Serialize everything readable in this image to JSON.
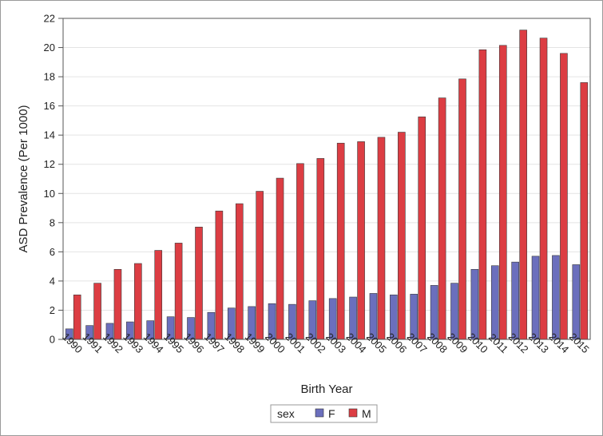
{
  "chart_data": {
    "type": "bar",
    "xlabel": "Birth Year",
    "ylabel": "ASD Prevalence (Per 1000)",
    "ylim": [
      0,
      22
    ],
    "yticks": [
      0,
      2,
      4,
      6,
      8,
      10,
      12,
      14,
      16,
      18,
      20,
      22
    ],
    "grid": true,
    "legend": {
      "title": "sex",
      "placement": "bottom"
    },
    "categories": [
      "1990",
      "1991",
      "1992",
      "1993",
      "1994",
      "1995",
      "1996",
      "1997",
      "1998",
      "1999",
      "2000",
      "2001",
      "2002",
      "2003",
      "2004",
      "2005",
      "2006",
      "2007",
      "2008",
      "2009",
      "2010",
      "2011",
      "2012",
      "2013",
      "2014",
      "2015"
    ],
    "series": [
      {
        "name": "F",
        "color": "#6b6fbd",
        "values": [
          0.72,
          0.95,
          1.1,
          1.2,
          1.28,
          1.55,
          1.5,
          1.85,
          2.15,
          2.25,
          2.45,
          2.4,
          2.65,
          2.8,
          2.9,
          3.15,
          3.05,
          3.1,
          3.7,
          3.85,
          4.8,
          5.05,
          5.3,
          5.7,
          5.75,
          5.12
        ]
      },
      {
        "name": "M",
        "color": "#dc3d43",
        "values": [
          3.05,
          3.85,
          4.8,
          5.2,
          6.1,
          6.6,
          7.7,
          8.8,
          9.3,
          10.15,
          11.05,
          12.05,
          12.4,
          13.45,
          13.55,
          13.85,
          14.2,
          15.25,
          16.55,
          17.85,
          19.85,
          20.15,
          21.2,
          20.65,
          19.6,
          17.6
        ]
      }
    ]
  }
}
